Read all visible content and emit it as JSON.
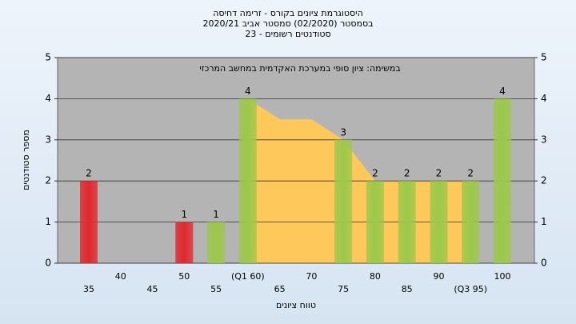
{
  "chart_data": {
    "type": "bar",
    "title": "היסטוגרמת ציונים בקורס - זרימה דחיסה",
    "subtitle": "בסמסטר  (02/2020)  סמסטר אביב 2020/21",
    "subtitle2": "סטודנטים רשומים - 23",
    "annotation": "במשימה: ציון סופי במערכת האקדמית במחשב המרכזי",
    "y_label": "מספר סטודנטים",
    "x_label": "טווח ציונים",
    "categories": [
      "35",
      "40",
      "45",
      "50",
      "55",
      "(Q1 60)",
      "65",
      "70",
      "75",
      "80",
      "85",
      "90",
      "(Q3 95)",
      "100"
    ],
    "values": [
      2,
      0,
      0,
      1,
      1,
      4,
      0,
      0,
      3,
      2,
      2,
      2,
      2,
      4
    ],
    "colors": [
      "#e0282e",
      "#e0282e",
      "#e0282e",
      "#e0282e",
      "#9cc84a",
      "#9cc84a",
      "#9cc84a",
      "#9cc84a",
      "#9cc84a",
      "#9cc84a",
      "#9cc84a",
      "#9cc84a",
      "#9cc84a",
      "#9cc84a"
    ],
    "trend": {
      "color": "#ffc85a",
      "values": [
        null,
        null,
        null,
        null,
        null,
        4,
        3.5,
        3.5,
        3,
        2,
        2,
        2,
        2,
        null
      ]
    },
    "ylim": [
      0,
      5
    ],
    "yticks": [
      0,
      1,
      2,
      3,
      4,
      5
    ],
    "grid": true
  }
}
